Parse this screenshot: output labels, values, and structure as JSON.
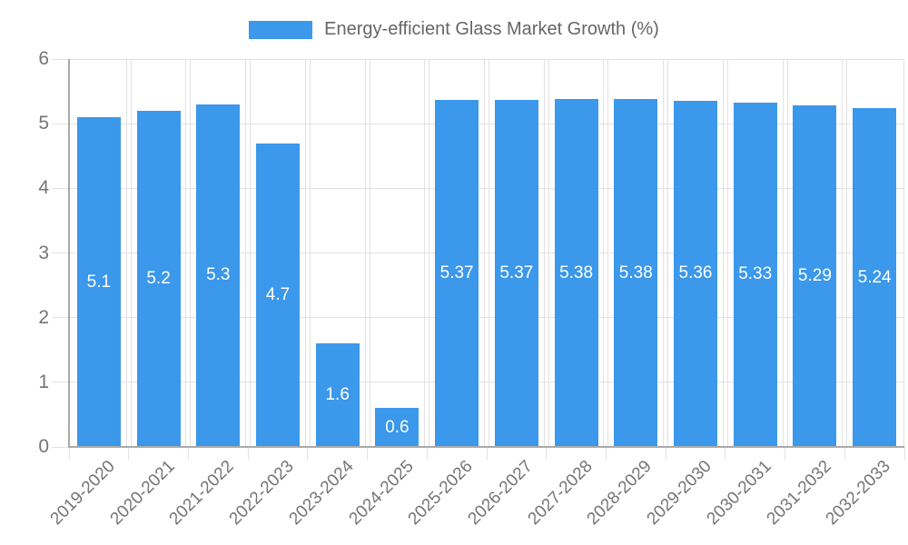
{
  "legend": {
    "label": "Energy-efficient Glass Market Growth (%)"
  },
  "chart_data": {
    "type": "bar",
    "title": "Energy-efficient Glass Market Growth (%)",
    "categories": [
      "2019-2020",
      "2020-2021",
      "2021-2022",
      "2022-2023",
      "2023-2024",
      "2024-2025",
      "2025-2026",
      "2026-2027",
      "2027-2028",
      "2028-2029",
      "2029-2030",
      "2030-2031",
      "2031-2032",
      "2032-2033"
    ],
    "values": [
      5.1,
      5.2,
      5.3,
      4.7,
      1.6,
      0.6,
      5.37,
      5.37,
      5.38,
      5.38,
      5.36,
      5.33,
      5.29,
      5.24
    ],
    "value_labels": [
      "5.1",
      "5.2",
      "5.3",
      "4.7",
      "1.6",
      "0.6",
      "5.37",
      "5.37",
      "5.38",
      "5.38",
      "5.36",
      "5.33",
      "5.29",
      "5.24"
    ],
    "xlabel": "",
    "ylabel": "",
    "ylim": [
      0,
      6
    ],
    "yticks": [
      "0",
      "1",
      "2",
      "3",
      "4",
      "5",
      "6"
    ],
    "grid": true,
    "legend_position": "top-center",
    "colors": {
      "bar": "#3B98EB",
      "data_label": "#FFFFFF",
      "grid": "#E2E2E2",
      "axis": "#A9A9A9",
      "tick_label": "#757575",
      "legend_text": "#666666"
    }
  }
}
